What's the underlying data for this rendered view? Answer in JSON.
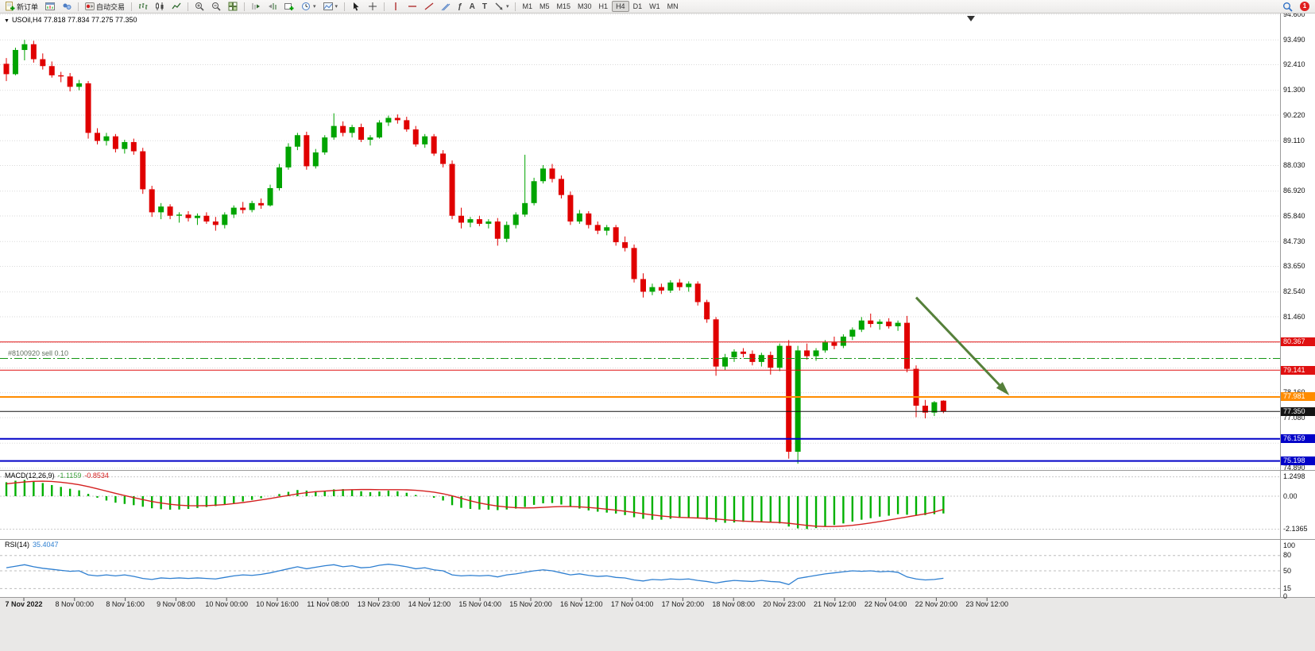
{
  "toolbar": {
    "new_order_label": "新订单",
    "autotrade_label": "自动交易",
    "timeframes": [
      "M1",
      "M5",
      "M15",
      "M30",
      "H1",
      "H4",
      "D1",
      "W1",
      "MN"
    ],
    "active_timeframe": "H4",
    "notification_count": "1"
  },
  "chart": {
    "symbol_ohlc_label": "USOil,H4 77.818 77.834 77.275 77.350",
    "order": {
      "label": "#8100920 sell 0.10",
      "price": 79.65,
      "color": "#149614",
      "dash": "10,3,2,3"
    },
    "axis_prices": [
      "94.600",
      "93.490",
      "92.410",
      "91.300",
      "90.220",
      "89.110",
      "88.030",
      "86.920",
      "85.840",
      "84.730",
      "83.650",
      "82.540",
      "81.460",
      "80.350",
      "79.240",
      "78.160",
      "77.080",
      "75.970",
      "74.890"
    ],
    "axis_hidden": [
      "80.350",
      "79.240",
      "75.970"
    ],
    "badges": [
      {
        "value": "80.367",
        "price": 80.367,
        "color": "#e01010"
      },
      {
        "value": "79.141",
        "price": 79.141,
        "color": "#e01010"
      },
      {
        "value": "77.981",
        "price": 77.981,
        "color": "#ff8c00"
      },
      {
        "value": "77.350",
        "price": 77.35,
        "color": "#141414"
      },
      {
        "value": "76.159",
        "price": 76.159,
        "color": "#0202c8"
      },
      {
        "value": "75.198",
        "price": 75.198,
        "color": "#0202c8"
      }
    ],
    "hlines": [
      {
        "name": "resistance-line-upper",
        "price": 80.367,
        "color": "#e01010",
        "width": 1
      },
      {
        "name": "resistance-line-lower",
        "price": 79.141,
        "color": "#e01010",
        "width": 1
      },
      {
        "name": "orange-level-line",
        "price": 77.981,
        "color": "#ff8c00",
        "width": 2
      },
      {
        "name": "current-price-line",
        "price": 77.35,
        "color": "#141414",
        "width": 1
      },
      {
        "name": "support-line-upper",
        "price": 76.159,
        "color": "#0202c8",
        "width": 2
      },
      {
        "name": "support-line-lower",
        "price": 75.198,
        "color": "#0202c8",
        "width": 2
      }
    ],
    "arrow": {
      "from_bar": 100,
      "from_price": 82.3,
      "to_bar": 110,
      "to_price": 78.15,
      "color": "#55803a"
    },
    "time_labels": [
      "7 Nov 2022",
      "8 Nov 00:00",
      "8 Nov 16:00",
      "9 Nov 08:00",
      "10 Nov 00:00",
      "10 Nov 16:00",
      "11 Nov 08:00",
      "13 Nov 23:00",
      "14 Nov 12:00",
      "15 Nov 04:00",
      "15 Nov 20:00",
      "16 Nov 12:00",
      "17 Nov 04:00",
      "17 Nov 20:00",
      "18 Nov 08:00",
      "20 Nov 23:00",
      "21 Nov 12:00",
      "22 Nov 04:00",
      "22 Nov 20:00",
      "23 Nov 12:00"
    ]
  },
  "chart_data": [
    {
      "type": "candlestick",
      "symbol": "USOil",
      "timeframe": "H4",
      "open": "77.818",
      "high": "77.834",
      "low": "77.275",
      "close": "77.350",
      "bull_color": "#00a400",
      "bear_color": "#e00000",
      "price_max": 94.6,
      "price_min": 74.89,
      "ohlc": [
        [
          92.45,
          92.7,
          91.7,
          92.0
        ],
        [
          92.0,
          93.15,
          91.95,
          93.05
        ],
        [
          93.05,
          93.49,
          92.6,
          93.3
        ],
        [
          93.3,
          93.45,
          92.5,
          92.65
        ],
        [
          92.65,
          92.9,
          92.2,
          92.35
        ],
        [
          92.35,
          92.55,
          91.85,
          91.95
        ],
        [
          91.95,
          92.1,
          91.65,
          91.9
        ],
        [
          91.9,
          92.05,
          91.25,
          91.45
        ],
        [
          91.45,
          91.75,
          91.3,
          91.6
        ],
        [
          91.6,
          91.7,
          89.2,
          89.45
        ],
        [
          89.45,
          89.65,
          88.95,
          89.1
        ],
        [
          89.1,
          89.45,
          88.9,
          89.3
        ],
        [
          89.3,
          89.4,
          88.6,
          88.75
        ],
        [
          88.75,
          89.15,
          88.55,
          89.05
        ],
        [
          89.05,
          89.2,
          88.5,
          88.65
        ],
        [
          88.65,
          88.8,
          86.8,
          87.0
        ],
        [
          87.0,
          87.15,
          85.8,
          86.0
        ],
        [
          86.0,
          86.4,
          85.7,
          86.25
        ],
        [
          86.25,
          86.35,
          85.7,
          85.85
        ],
        [
          85.85,
          86.0,
          85.55,
          85.9
        ],
        [
          85.9,
          86.05,
          85.6,
          85.75
        ],
        [
          85.75,
          85.95,
          85.45,
          85.85
        ],
        [
          85.85,
          86.0,
          85.5,
          85.6
        ],
        [
          85.6,
          85.8,
          85.2,
          85.45
        ],
        [
          85.45,
          86.0,
          85.3,
          85.9
        ],
        [
          85.9,
          86.3,
          85.75,
          86.2
        ],
        [
          86.2,
          86.45,
          85.95,
          86.1
        ],
        [
          86.1,
          86.5,
          86.0,
          86.4
        ],
        [
          86.4,
          86.6,
          86.15,
          86.3
        ],
        [
          86.3,
          87.2,
          86.25,
          87.05
        ],
        [
          87.05,
          88.1,
          86.95,
          87.95
        ],
        [
          87.95,
          89.0,
          87.85,
          88.85
        ],
        [
          88.85,
          89.45,
          88.7,
          89.35
        ],
        [
          89.35,
          89.5,
          87.85,
          88.0
        ],
        [
          88.0,
          88.75,
          87.9,
          88.6
        ],
        [
          88.6,
          89.35,
          88.5,
          89.25
        ],
        [
          89.25,
          90.3,
          89.15,
          89.75
        ],
        [
          89.75,
          89.95,
          89.3,
          89.45
        ],
        [
          89.45,
          89.8,
          89.25,
          89.7
        ],
        [
          89.7,
          89.85,
          89.05,
          89.15
        ],
        [
          89.15,
          89.35,
          88.9,
          89.25
        ],
        [
          89.25,
          90.0,
          89.2,
          89.9
        ],
        [
          89.9,
          90.2,
          89.75,
          90.1
        ],
        [
          90.1,
          90.25,
          89.85,
          90.0
        ],
        [
          90.0,
          90.15,
          89.5,
          89.6
        ],
        [
          89.6,
          89.75,
          88.85,
          88.95
        ],
        [
          88.95,
          89.4,
          88.8,
          89.3
        ],
        [
          89.3,
          89.4,
          88.45,
          88.55
        ],
        [
          88.55,
          88.7,
          87.95,
          88.1
        ],
        [
          88.1,
          88.25,
          85.7,
          85.85
        ],
        [
          85.85,
          86.2,
          85.3,
          85.55
        ],
        [
          85.55,
          85.8,
          85.35,
          85.7
        ],
        [
          85.7,
          85.85,
          85.4,
          85.5
        ],
        [
          85.5,
          85.7,
          85.3,
          85.6
        ],
        [
          85.6,
          85.75,
          84.55,
          84.85
        ],
        [
          84.85,
          85.6,
          84.7,
          85.45
        ],
        [
          85.45,
          86.0,
          85.3,
          85.9
        ],
        [
          85.9,
          88.5,
          85.8,
          86.4
        ],
        [
          86.4,
          87.5,
          86.3,
          87.35
        ],
        [
          87.35,
          88.05,
          87.25,
          87.9
        ],
        [
          87.9,
          88.1,
          87.3,
          87.45
        ],
        [
          87.45,
          87.6,
          86.6,
          86.75
        ],
        [
          86.75,
          86.9,
          85.45,
          85.6
        ],
        [
          85.6,
          86.1,
          85.5,
          85.95
        ],
        [
          85.95,
          86.05,
          85.3,
          85.45
        ],
        [
          85.45,
          85.6,
          85.05,
          85.2
        ],
        [
          85.2,
          85.45,
          85.0,
          85.35
        ],
        [
          85.35,
          85.45,
          84.55,
          84.7
        ],
        [
          84.7,
          84.95,
          84.3,
          84.45
        ],
        [
          84.45,
          84.6,
          82.95,
          83.1
        ],
        [
          83.1,
          83.35,
          82.3,
          82.55
        ],
        [
          82.55,
          82.9,
          82.4,
          82.75
        ],
        [
          82.75,
          82.9,
          82.45,
          82.6
        ],
        [
          82.6,
          83.05,
          82.5,
          82.95
        ],
        [
          82.95,
          83.1,
          82.6,
          82.75
        ],
        [
          82.75,
          83.0,
          82.55,
          82.9
        ],
        [
          82.9,
          83.0,
          81.95,
          82.1
        ],
        [
          82.1,
          82.2,
          81.2,
          81.35
        ],
        [
          81.35,
          81.45,
          78.9,
          79.3
        ],
        [
          79.3,
          79.85,
          79.15,
          79.7
        ],
        [
          79.7,
          80.05,
          79.5,
          79.95
        ],
        [
          79.95,
          80.1,
          79.7,
          79.85
        ],
        [
          79.85,
          80.0,
          79.35,
          79.5
        ],
        [
          79.5,
          79.9,
          79.3,
          79.8
        ],
        [
          79.8,
          79.95,
          78.95,
          79.25
        ],
        [
          79.25,
          80.3,
          79.1,
          80.2
        ],
        [
          80.2,
          80.45,
          75.3,
          75.6
        ],
        [
          75.6,
          80.2,
          75.08,
          80.0
        ],
        [
          80.0,
          80.3,
          79.6,
          79.75
        ],
        [
          79.75,
          80.1,
          79.55,
          80.0
        ],
        [
          80.0,
          80.45,
          79.9,
          80.35
        ],
        [
          80.35,
          80.6,
          80.05,
          80.2
        ],
        [
          80.2,
          80.7,
          80.1,
          80.6
        ],
        [
          80.6,
          81.0,
          80.45,
          80.9
        ],
        [
          80.9,
          81.45,
          80.8,
          81.3
        ],
        [
          81.3,
          81.6,
          81.0,
          81.15
        ],
        [
          81.15,
          81.35,
          80.9,
          81.25
        ],
        [
          81.25,
          81.4,
          80.95,
          81.05
        ],
        [
          81.05,
          81.3,
          80.85,
          81.2
        ],
        [
          81.2,
          81.5,
          79.05,
          79.2
        ],
        [
          79.2,
          79.35,
          77.1,
          77.6
        ],
        [
          77.6,
          77.85,
          77.05,
          77.3
        ],
        [
          77.3,
          77.8,
          77.15,
          77.75
        ],
        [
          77.818,
          77.834,
          77.275,
          77.35
        ]
      ]
    },
    {
      "type": "bar",
      "name": "MACD(12,26,9)",
      "value_main": "-1.1159",
      "value_signal": "-0.8534",
      "hist_color": "#00b000",
      "signal_color": "#d42020",
      "scale": [
        "1.2498",
        "0.00",
        "-2.1365"
      ],
      "values": [
        0.9,
        1.0,
        1.05,
        0.95,
        0.85,
        0.72,
        0.6,
        0.48,
        0.38,
        0.15,
        -0.1,
        -0.28,
        -0.42,
        -0.5,
        -0.58,
        -0.68,
        -0.78,
        -0.84,
        -0.87,
        -0.86,
        -0.82,
        -0.76,
        -0.7,
        -0.64,
        -0.55,
        -0.45,
        -0.34,
        -0.24,
        -0.13,
        0.0,
        0.14,
        0.28,
        0.4,
        0.36,
        0.32,
        0.36,
        0.44,
        0.46,
        0.42,
        0.32,
        0.26,
        0.3,
        0.36,
        0.32,
        0.22,
        0.08,
        0.0,
        -0.1,
        -0.28,
        -0.58,
        -0.75,
        -0.82,
        -0.86,
        -0.87,
        -0.9,
        -0.86,
        -0.8,
        -0.7,
        -0.56,
        -0.46,
        -0.44,
        -0.54,
        -0.68,
        -0.8,
        -0.92,
        -1.0,
        -1.06,
        -1.12,
        -1.22,
        -1.36,
        -1.46,
        -1.52,
        -1.52,
        -1.46,
        -1.4,
        -1.36,
        -1.4,
        -1.52,
        -1.66,
        -1.72,
        -1.7,
        -1.66,
        -1.64,
        -1.66,
        -1.7,
        -1.76,
        -1.96,
        -2.08,
        -2.12,
        -2.06,
        -1.96,
        -1.86,
        -1.76,
        -1.64,
        -1.52,
        -1.42,
        -1.32,
        -1.26,
        -1.16,
        -1.2,
        -1.26,
        -1.22,
        -1.16,
        -1.1159
      ],
      "signal": [
        0.8,
        0.86,
        0.92,
        0.96,
        0.97,
        0.95,
        0.9,
        0.83,
        0.74,
        0.62,
        0.48,
        0.33,
        0.18,
        0.04,
        -0.09,
        -0.22,
        -0.34,
        -0.44,
        -0.52,
        -0.58,
        -0.61,
        -0.62,
        -0.61,
        -0.58,
        -0.54,
        -0.48,
        -0.41,
        -0.33,
        -0.24,
        -0.15,
        -0.05,
        0.05,
        0.15,
        0.23,
        0.29,
        0.33,
        0.37,
        0.4,
        0.42,
        0.43,
        0.43,
        0.42,
        0.42,
        0.42,
        0.41,
        0.38,
        0.33,
        0.26,
        0.16,
        0.02,
        -0.14,
        -0.3,
        -0.44,
        -0.55,
        -0.64,
        -0.7,
        -0.74,
        -0.76,
        -0.75,
        -0.72,
        -0.69,
        -0.67,
        -0.67,
        -0.69,
        -0.73,
        -0.78,
        -0.84,
        -0.9,
        -0.97,
        -1.05,
        -1.13,
        -1.21,
        -1.28,
        -1.33,
        -1.37,
        -1.39,
        -1.41,
        -1.43,
        -1.47,
        -1.52,
        -1.57,
        -1.61,
        -1.64,
        -1.66,
        -1.68,
        -1.7,
        -1.75,
        -1.82,
        -1.89,
        -1.94,
        -1.96,
        -1.96,
        -1.93,
        -1.88,
        -1.81,
        -1.73,
        -1.64,
        -1.54,
        -1.44,
        -1.34,
        -1.24,
        -1.14,
        -1.02,
        -0.8534
      ]
    },
    {
      "type": "line",
      "name": "RSI(14)",
      "value": "35.4047",
      "color": "#2e7fd1",
      "scale": [
        "100",
        "80",
        "50",
        "15",
        "0"
      ],
      "levels_dashed": [
        80,
        50,
        15
      ],
      "values": [
        56,
        59,
        62,
        58,
        55,
        53,
        51,
        49,
        50,
        42,
        40,
        42,
        40,
        42,
        39,
        35,
        33,
        36,
        35,
        36,
        35,
        36,
        35,
        34,
        37,
        40,
        42,
        41,
        43,
        46,
        50,
        54,
        58,
        54,
        57,
        60,
        62,
        58,
        60,
        56,
        57,
        61,
        63,
        61,
        58,
        54,
        56,
        52,
        50,
        42,
        40,
        41,
        40,
        41,
        38,
        42,
        44,
        47,
        50,
        52,
        50,
        46,
        42,
        44,
        41,
        39,
        40,
        37,
        36,
        32,
        30,
        33,
        32,
        34,
        33,
        34,
        31,
        29,
        26,
        29,
        31,
        30,
        29,
        31,
        29,
        28,
        23,
        35,
        38,
        41,
        44,
        46,
        48,
        50,
        49,
        50,
        48,
        49,
        47,
        38,
        34,
        32,
        33,
        35.4
      ]
    }
  ]
}
